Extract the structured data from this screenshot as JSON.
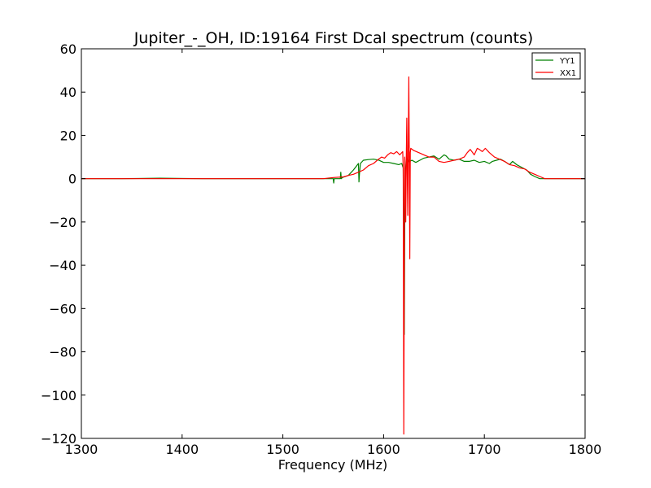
{
  "chart_data": {
    "type": "line",
    "title": "Jupiter_-_OH, ID:19164 First Dcal spectrum (counts)",
    "xlabel": "Frequency (MHz)",
    "ylabel": "",
    "xlim": [
      1300,
      1800
    ],
    "ylim": [
      -120,
      60
    ],
    "xticks": [
      1300,
      1400,
      1500,
      1600,
      1700,
      1800
    ],
    "yticks": [
      60,
      40,
      20,
      0,
      -20,
      -40,
      -60,
      -80,
      -100,
      -120
    ],
    "xtick_labels": [
      "1300",
      "1400",
      "1500",
      "1600",
      "1700",
      "1800"
    ],
    "ytick_labels": [
      "60",
      "40",
      "20",
      "0",
      "−20",
      "−40",
      "−60",
      "−80",
      "−100",
      "−120"
    ],
    "grid": false,
    "legend_position": "top-right",
    "series": [
      {
        "name": "YY1",
        "color": "#008000",
        "x": [
          1300,
          1340,
          1378,
          1420,
          1460,
          1500,
          1540,
          1550,
          1550.5,
          1551,
          1552,
          1557,
          1557.5,
          1558,
          1559,
          1565,
          1570,
          1575,
          1575.5,
          1576,
          1577,
          1580,
          1585,
          1590,
          1595,
          1600,
          1605,
          1610,
          1615,
          1618,
          1619.5,
          1620,
          1620.5,
          1621,
          1622,
          1623,
          1624,
          1625,
          1626,
          1628,
          1632,
          1636,
          1640,
          1645,
          1650,
          1655,
          1660,
          1662,
          1665,
          1670,
          1675,
          1680,
          1685,
          1690,
          1695,
          1700,
          1705,
          1708,
          1712,
          1716,
          1720,
          1725,
          1728,
          1732,
          1738,
          1742,
          1746,
          1750,
          1755,
          1760,
          1770,
          1780,
          1800
        ],
        "y": [
          0,
          0,
          0.2,
          0,
          0,
          0,
          0,
          0,
          -2,
          0,
          0,
          0,
          3,
          0,
          0.5,
          1.5,
          4,
          7,
          -1.5,
          2,
          7,
          8.5,
          8.8,
          9,
          8.6,
          7.5,
          7.5,
          7,
          6.5,
          7,
          5,
          -35,
          -72,
          -20,
          5,
          10,
          7,
          8.5,
          8,
          8.5,
          7.5,
          8.5,
          9.5,
          10,
          10.5,
          9,
          11,
          10.5,
          9,
          8.5,
          9,
          8,
          8,
          8.5,
          7.5,
          8,
          7,
          8,
          8.5,
          9,
          8,
          6.5,
          8,
          6.5,
          5,
          4,
          2,
          1,
          0,
          0,
          0,
          0,
          0
        ]
      },
      {
        "name": "XX1",
        "color": "#ff0000",
        "x": [
          1300,
          1350,
          1400,
          1450,
          1500,
          1540,
          1550,
          1560,
          1565,
          1570,
          1575,
          1580,
          1585,
          1590,
          1595,
          1598,
          1601,
          1604,
          1607,
          1610,
          1613,
          1616,
          1618,
          1619,
          1619.5,
          1620,
          1620.5,
          1621,
          1621.5,
          1622,
          1622.5,
          1623,
          1623.5,
          1624,
          1624.5,
          1625,
          1625.5,
          1626,
          1626.5,
          1627,
          1630,
          1635,
          1640,
          1645,
          1650,
          1655,
          1660,
          1665,
          1670,
          1675,
          1680,
          1683,
          1686,
          1690,
          1693,
          1695,
          1698,
          1701,
          1705,
          1710,
          1715,
          1720,
          1725,
          1730,
          1735,
          1740,
          1745,
          1750,
          1755,
          1760,
          1770,
          1800
        ],
        "y": [
          0,
          0,
          0,
          0,
          0,
          0,
          0.5,
          0.8,
          1.5,
          2,
          3,
          4,
          6,
          7,
          9,
          10,
          9.5,
          11,
          12,
          11.5,
          12.5,
          11,
          12,
          12.5,
          5,
          -118,
          -40,
          10,
          3,
          -20,
          10,
          28,
          2,
          -17,
          15,
          47,
          8,
          -37,
          12,
          14,
          13,
          12,
          11,
          10,
          10,
          8,
          7.5,
          8,
          8.5,
          9,
          10,
          12,
          13.5,
          11,
          14,
          13.5,
          12.5,
          14,
          12,
          10,
          9,
          8,
          6.5,
          6,
          5,
          4.5,
          3,
          2,
          1,
          0,
          0,
          0
        ]
      }
    ]
  }
}
